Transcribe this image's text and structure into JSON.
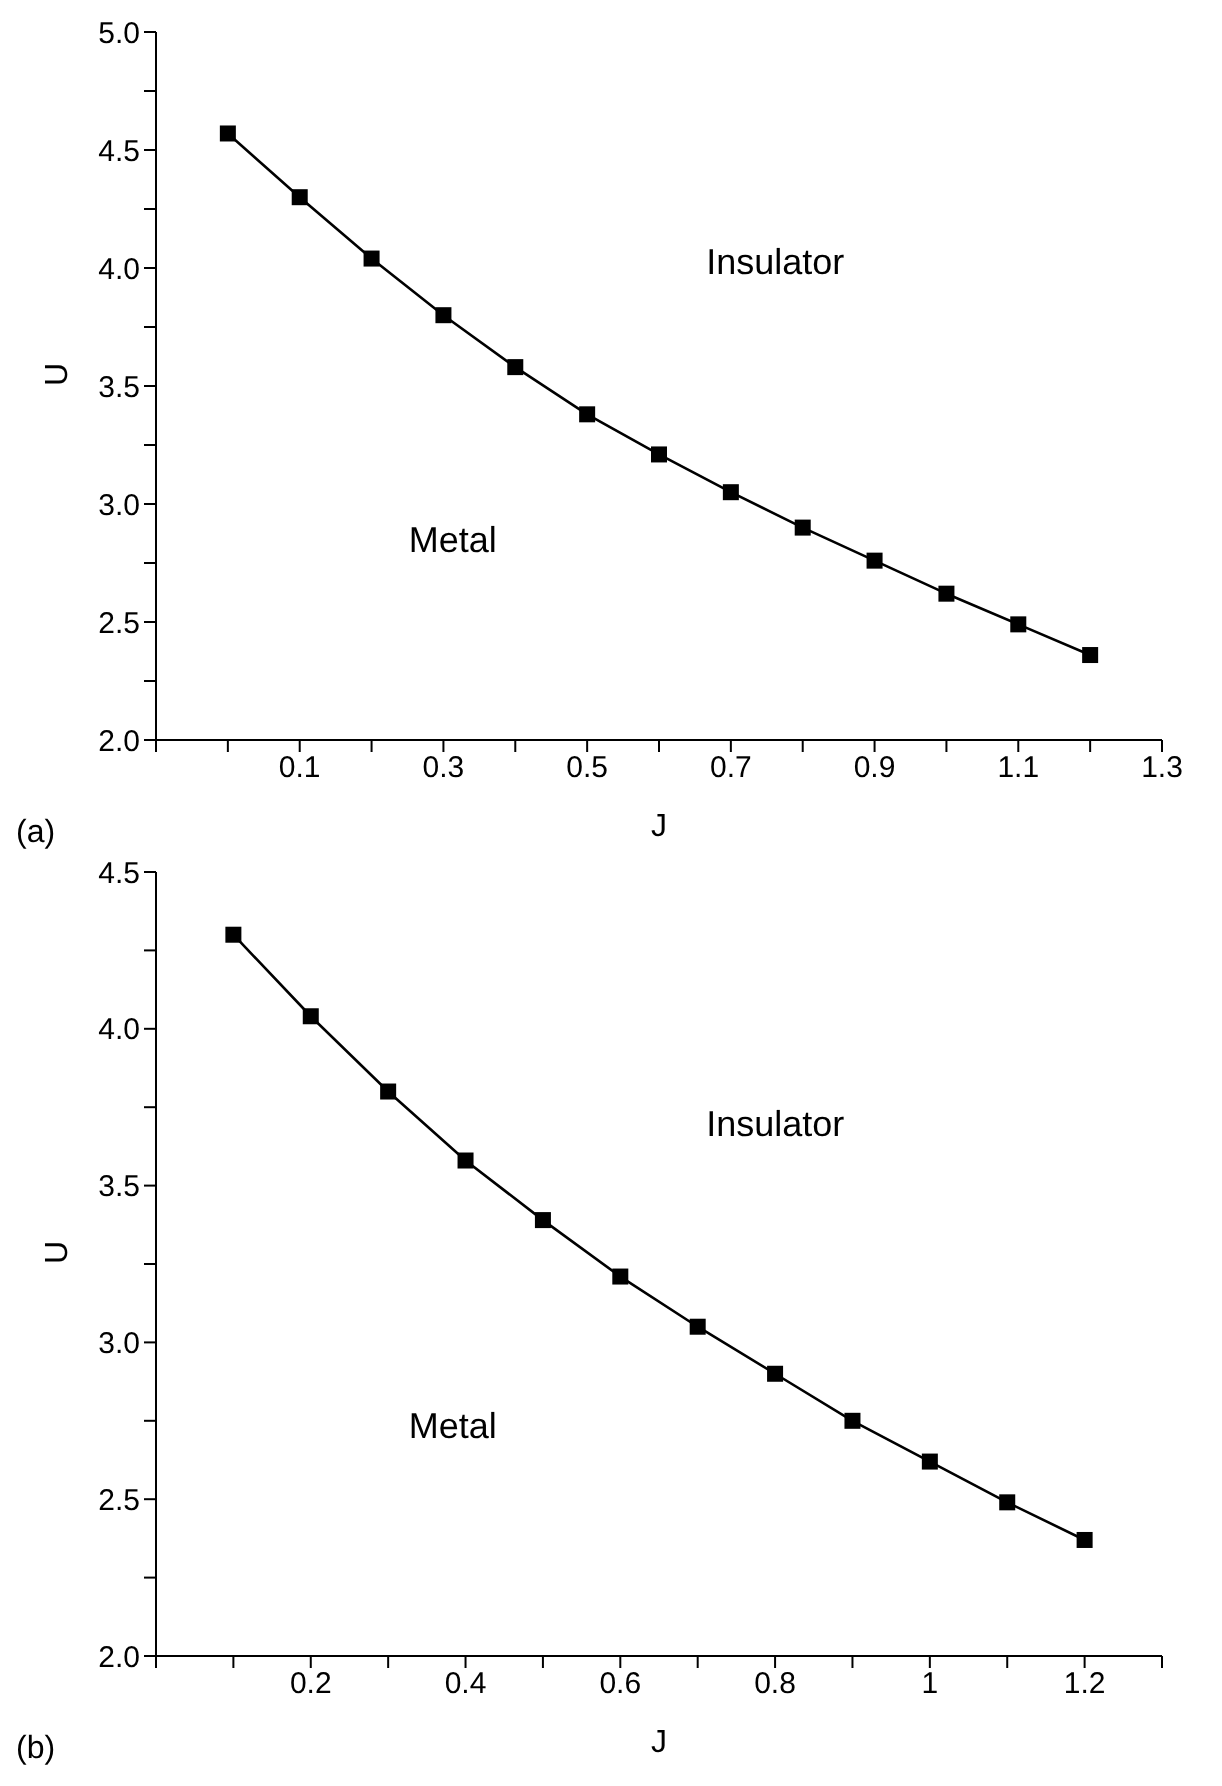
{
  "chart_data": [
    {
      "type": "line",
      "xlabel": "J",
      "ylabel": "U",
      "marker": "square",
      "line_style": "solid",
      "grid": false,
      "legend": false,
      "x": [
        0.0,
        0.1,
        0.2,
        0.3,
        0.4,
        0.5,
        0.6,
        0.7,
        0.8,
        0.9,
        1.0,
        1.1,
        1.2
      ],
      "series": [
        {
          "color": "#000000",
          "values": [
            4.57,
            4.3,
            4.04,
            3.8,
            3.58,
            3.38,
            3.21,
            3.05,
            2.9,
            2.76,
            2.62,
            2.49,
            2.36
          ]
        }
      ],
      "xlim": [
        -0.1,
        1.3
      ],
      "xticks": [
        {
          "value": -0.1,
          "label": null
        },
        {
          "value": 0.0,
          "label": null
        },
        0.1,
        {
          "value": 0.2,
          "label": null
        },
        0.3,
        {
          "value": 0.4,
          "label": null
        },
        0.5,
        {
          "value": 0.6,
          "label": null
        },
        0.7,
        {
          "value": 0.8,
          "label": null
        },
        0.9,
        {
          "value": 1.0,
          "label": null
        },
        1.1,
        {
          "value": 1.2,
          "label": null
        },
        1.3
      ],
      "ylim": [
        2.0,
        5.0
      ],
      "yticks": [
        {
          "value": 2.0,
          "label": "2.0"
        },
        {
          "value": 2.25,
          "label": null
        },
        2.5,
        {
          "value": 2.75,
          "label": null
        },
        {
          "value": 3.0,
          "label": "3.0"
        },
        {
          "value": 3.25,
          "label": null
        },
        3.5,
        {
          "value": 3.75,
          "label": null
        },
        {
          "value": 4.0,
          "label": "4.0"
        },
        {
          "value": 4.25,
          "label": null
        },
        4.5,
        {
          "value": 4.75,
          "label": null
        },
        {
          "value": 5.0,
          "label": "5.0"
        }
      ],
      "annotations": [
        "(a)",
        "Insulator",
        "Metal"
      ]
    },
    {
      "type": "line",
      "xlabel": "J",
      "ylabel": "U",
      "marker": "square",
      "line_style": "solid",
      "grid": false,
      "legend": false,
      "x": [
        0.1,
        0.2,
        0.3,
        0.4,
        0.5,
        0.6,
        0.7,
        0.8,
        0.9,
        1.0,
        1.1,
        1.2
      ],
      "series": [
        {
          "color": "#000000",
          "values": [
            4.3,
            4.04,
            3.8,
            3.58,
            3.39,
            3.21,
            3.05,
            2.9,
            2.75,
            2.62,
            2.49,
            2.37
          ]
        }
      ],
      "xlim": [
        0,
        1.3
      ],
      "xticks": [
        {
          "value": 0,
          "label": null
        },
        {
          "value": 0.1,
          "label": null
        },
        0.2,
        {
          "value": 0.3,
          "label": null
        },
        0.4,
        {
          "value": 0.5,
          "label": null
        },
        0.6,
        {
          "value": 0.7,
          "label": null
        },
        0.8,
        {
          "value": 0.9,
          "label": null
        },
        1,
        {
          "value": 1.1,
          "label": null
        },
        1.2,
        {
          "value": 1.3,
          "label": null
        }
      ],
      "ylim": [
        2.0,
        4.5
      ],
      "yticks": [
        {
          "value": 2.0,
          "label": "2.0"
        },
        {
          "value": 2.25,
          "label": null
        },
        2.5,
        {
          "value": 2.75,
          "label": null
        },
        {
          "value": 3.0,
          "label": "3.0"
        },
        {
          "value": 3.25,
          "label": null
        },
        3.5,
        {
          "value": 3.75,
          "label": null
        },
        {
          "value": 4.0,
          "label": "4.0"
        },
        {
          "value": 4.25,
          "label": null
        },
        4.5
      ],
      "annotations": [
        "(b)",
        "Insulator",
        "Metal"
      ]
    }
  ]
}
